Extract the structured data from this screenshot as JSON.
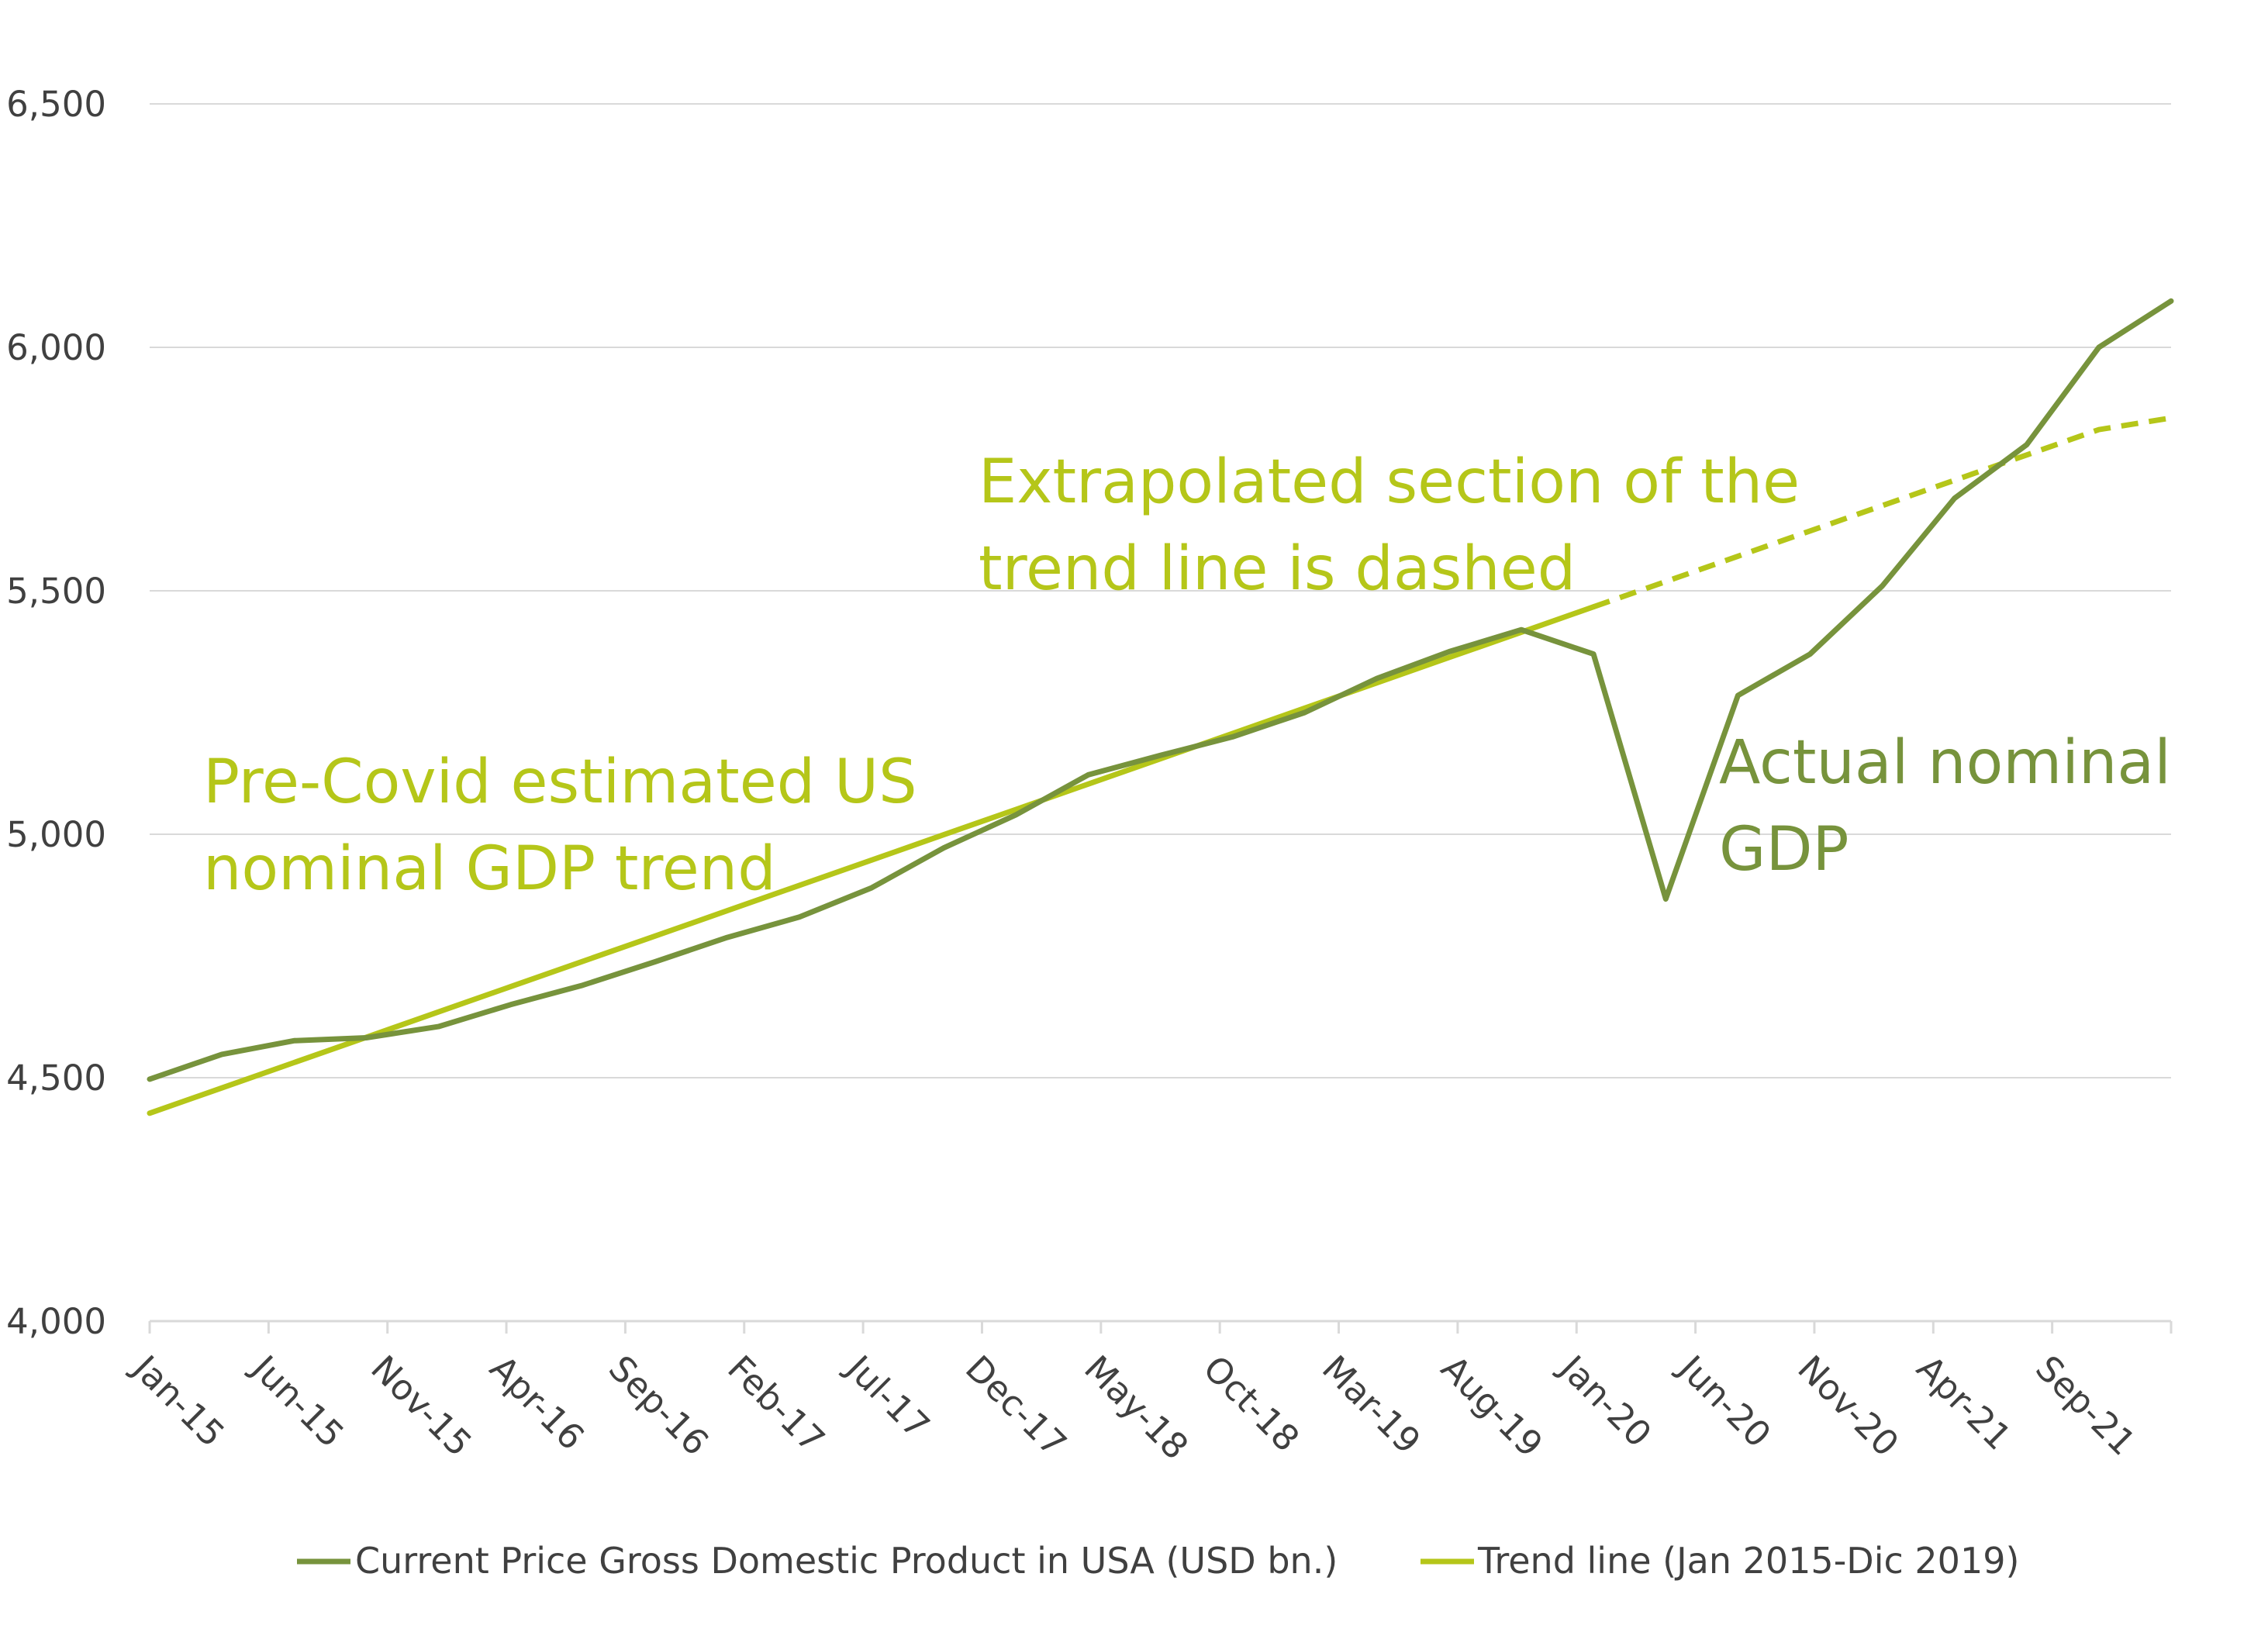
{
  "chart_data": {
    "type": "line",
    "title": "",
    "xlabel": "",
    "ylabel": "",
    "ylim": [
      4000,
      6500
    ],
    "yticks": [
      "4,000",
      "4,500",
      "5,000",
      "5,500",
      "6,000",
      "6,500"
    ],
    "ytick_values": [
      4000,
      4500,
      5000,
      5500,
      6000,
      6500
    ],
    "xtick_labels": [
      "Jan-15",
      "Jun-15",
      "Nov-15",
      "Apr-16",
      "Sep-16",
      "Feb-17",
      "Jul-17",
      "Dec-17",
      "May-18",
      "Oct-18",
      "Mar-19",
      "Aug-19",
      "Jan-20",
      "Jun-20",
      "Nov-20",
      "Apr-21",
      "Sep-21"
    ],
    "x": [
      "Jan-15",
      "Apr-15",
      "Jul-15",
      "Oct-15",
      "Jan-16",
      "Apr-16",
      "Jul-16",
      "Oct-16",
      "Jan-17",
      "Apr-17",
      "Jul-17",
      "Oct-17",
      "Jan-18",
      "Apr-18",
      "Jul-18",
      "Oct-18",
      "Jan-19",
      "Apr-19",
      "Jul-19",
      "Oct-19",
      "Jan-20",
      "Apr-20",
      "Jul-20",
      "Oct-20",
      "Jan-21",
      "Apr-21",
      "Jul-21",
      "Oct-21",
      "Jan-22"
    ],
    "grid": true,
    "legend_position": "bottom",
    "series": [
      {
        "name": "Current Price Gross Domestic Product in USA (USD bn.)",
        "color": "#77933c",
        "values": [
          4497,
          4548,
          4576,
          4582,
          4605,
          4650,
          4690,
          4738,
          4788,
          4830,
          4890,
          4972,
          5040,
          5122,
          5162,
          5200,
          5250,
          5320,
          5375,
          5420,
          5370,
          4867,
          5285,
          5370,
          5510,
          5690,
          5800,
          6000,
          6095
        ]
      },
      {
        "name": "Trend line (Jan 2015-Dic 2019)",
        "color": "#b5c619",
        "style": "solid until Jan-20, dashed after",
        "values": [
          4427,
          4479,
          4531,
          4583,
          4635,
          4687,
          4739,
          4791,
          4843,
          4895,
          4947,
          4999,
          5051,
          5103,
          5155,
          5207,
          5259,
          5311,
          5363,
          5415,
          5467,
          5519,
          5571,
          5623,
          5675,
          5727,
          5779,
          5831,
          5855
        ]
      }
    ],
    "annotations": [
      {
        "text_lines": [
          "Extrapolated section of the",
          "trend line is dashed"
        ],
        "color": "#b5c619"
      },
      {
        "text_lines": [
          "Pre-Covid estimated US",
          "nominal GDP trend"
        ],
        "color": "#b5c619"
      },
      {
        "text_lines": [
          "Actual nominal",
          "GDP"
        ],
        "color": "#77933c"
      }
    ]
  }
}
